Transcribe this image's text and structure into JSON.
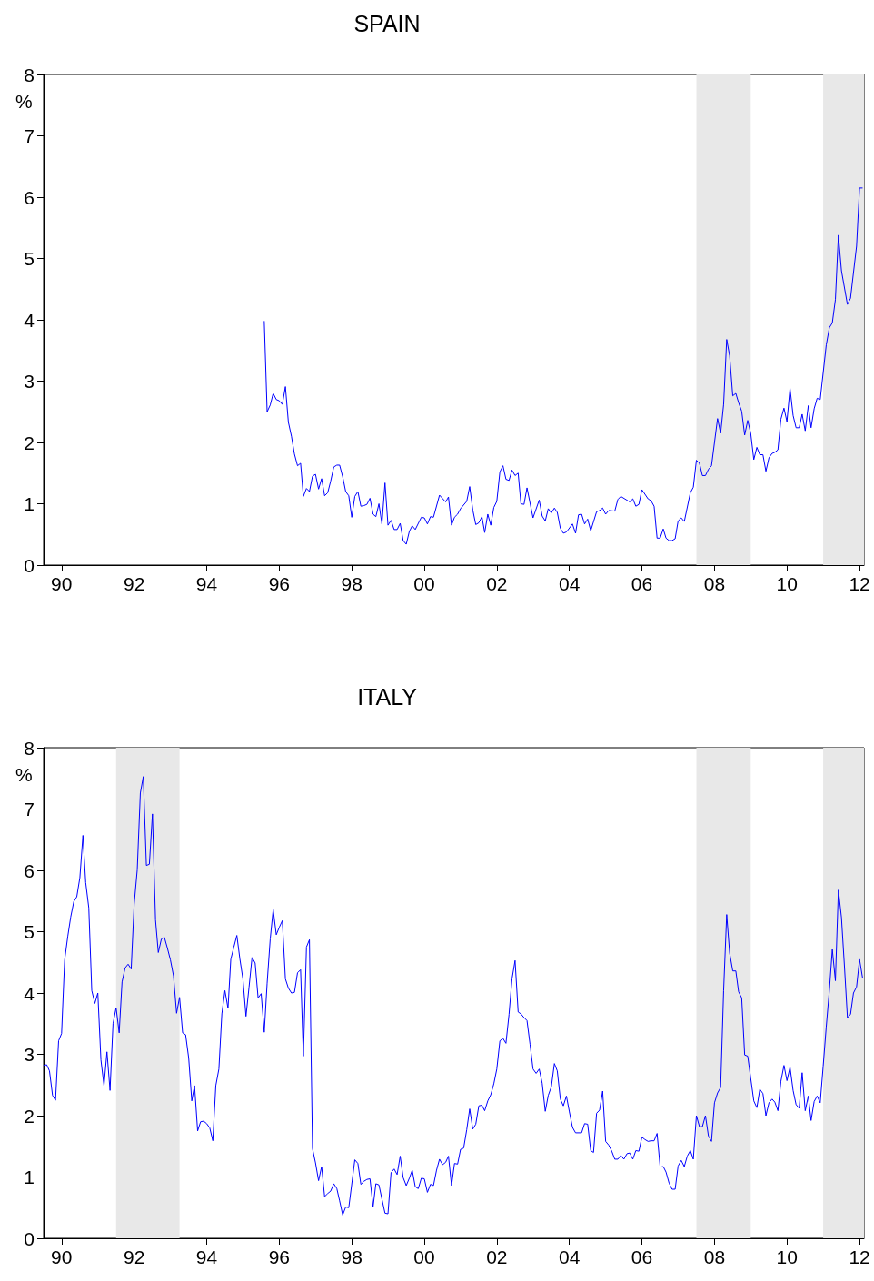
{
  "chart_data": [
    {
      "type": "line",
      "title": "SPAIN",
      "ylabel": "%",
      "color": "#0000ff",
      "xlim": [
        "1990-01-01",
        "2012-08-15"
      ],
      "ylim": [
        0,
        8
      ],
      "yticks": [
        0,
        1,
        2,
        3,
        4,
        5,
        6,
        7,
        8
      ],
      "xticks": [
        {
          "value": "1990-07-01",
          "label": "90"
        },
        {
          "value": "1992-07-01",
          "label": "92"
        },
        {
          "value": "1994-07-01",
          "label": "94"
        },
        {
          "value": "1996-07-01",
          "label": "96"
        },
        {
          "value": "1998-07-01",
          "label": "98"
        },
        {
          "value": "2000-07-01",
          "label": "00"
        },
        {
          "value": "2002-07-01",
          "label": "02"
        },
        {
          "value": "2004-07-01",
          "label": "04"
        },
        {
          "value": "2006-07-01",
          "label": "06"
        },
        {
          "value": "2008-07-01",
          "label": "08"
        },
        {
          "value": "2010-07-01",
          "label": "10"
        },
        {
          "value": "2012-07-01",
          "label": "12"
        }
      ],
      "bands": [
        {
          "axis": "x",
          "from": "2008-01-01",
          "to": "2009-07-01",
          "color": "#e8e8e8"
        },
        {
          "axis": "x",
          "from": "2011-07-01",
          "to": "2012-08-15",
          "color": "#e8e8e8"
        }
      ],
      "x": [
        "1996-02",
        "1996-03",
        "1996-04",
        "1996-05",
        "1996-06",
        "1996-07",
        "1996-08",
        "1996-09",
        "1996-10",
        "1996-11",
        "1996-12",
        "1997-01",
        "1997-02",
        "1997-03",
        "1997-04",
        "1997-05",
        "1997-06",
        "1997-07",
        "1997-08",
        "1997-09",
        "1997-10",
        "1997-11",
        "1997-12",
        "1998-01",
        "1998-02",
        "1998-03",
        "1998-04",
        "1998-05",
        "1998-06",
        "1998-07",
        "1998-08",
        "1998-09",
        "1998-10",
        "1998-11",
        "1998-12",
        "1999-01",
        "1999-02",
        "1999-03",
        "1999-04",
        "1999-05",
        "1999-06",
        "1999-07",
        "1999-08",
        "1999-09",
        "1999-10",
        "1999-11",
        "1999-12",
        "2000-01",
        "2000-02",
        "2000-03",
        "2000-04",
        "2000-06",
        "2000-07",
        "2000-08",
        "2000-09",
        "2000-10",
        "2000-12",
        "2001-02",
        "2001-03",
        "2001-04",
        "2001-05",
        "2001-06",
        "2001-07",
        "2001-09",
        "2001-10",
        "2001-11",
        "2001-12",
        "2002-01",
        "2002-02",
        "2002-03",
        "2002-04",
        "2002-05",
        "2002-06",
        "2002-07",
        "2002-08",
        "2002-09",
        "2002-10",
        "2002-11",
        "2002-12",
        "2003-01",
        "2003-02",
        "2003-03",
        "2003-04",
        "2003-05",
        "2003-07",
        "2003-09",
        "2003-10",
        "2003-11",
        "2003-12",
        "2004-01",
        "2004-02",
        "2004-03",
        "2004-04",
        "2004-05",
        "2004-06",
        "2004-08",
        "2004-09",
        "2004-10",
        "2004-11",
        "2004-12",
        "2005-01",
        "2005-02",
        "2005-04",
        "2005-05",
        "2005-06",
        "2005-07",
        "2005-08",
        "2005-10",
        "2005-11",
        "2005-12",
        "2006-03",
        "2006-04",
        "2006-05",
        "2006-06",
        "2006-07",
        "2006-09",
        "2006-10",
        "2006-11",
        "2006-12",
        "2007-01",
        "2007-02",
        "2007-03",
        "2007-04",
        "2007-05",
        "2007-06",
        "2007-07",
        "2007-08",
        "2007-09",
        "2007-11",
        "2007-12",
        "2008-01",
        "2008-02",
        "2008-03",
        "2008-04",
        "2008-05",
        "2008-06",
        "2008-08",
        "2008-09",
        "2008-10",
        "2008-11",
        "2008-12",
        "2009-01",
        "2009-02",
        "2009-03",
        "2009-04",
        "2009-05",
        "2009-06",
        "2009-07",
        "2009-08",
        "2009-09",
        "2009-10",
        "2009-11",
        "2009-12",
        "2010-01",
        "2010-02",
        "2010-03",
        "2010-04",
        "2010-05",
        "2010-06",
        "2010-07",
        "2010-08",
        "2010-09",
        "2010-10",
        "2010-11",
        "2010-12",
        "2011-01",
        "2011-02",
        "2011-03",
        "2011-04",
        "2011-05",
        "2011-06",
        "2011-08",
        "2011-09",
        "2011-10",
        "2011-11",
        "2011-12",
        "2012-01",
        "2012-03",
        "2012-04",
        "2012-06",
        "2012-07",
        "2012-08"
      ],
      "values": [
        3.98,
        2.5,
        2.61,
        2.8,
        2.7,
        2.68,
        2.62,
        2.91,
        2.33,
        2.1,
        1.81,
        1.62,
        1.66,
        1.12,
        1.25,
        1.2,
        1.45,
        1.48,
        1.24,
        1.41,
        1.13,
        1.18,
        1.37,
        1.6,
        1.63,
        1.63,
        1.44,
        1.2,
        1.13,
        0.78,
        1.12,
        1.2,
        0.96,
        0.97,
        0.99,
        1.09,
        0.83,
        0.79,
        1.0,
        0.67,
        1.34,
        0.65,
        0.73,
        0.58,
        0.58,
        0.68,
        0.4,
        0.34,
        0.55,
        0.64,
        0.58,
        0.78,
        0.77,
        0.67,
        0.79,
        0.78,
        1.14,
        1.03,
        1.11,
        0.65,
        0.78,
        0.83,
        0.92,
        1.04,
        1.28,
        0.9,
        0.66,
        0.69,
        0.79,
        0.53,
        0.83,
        0.65,
        0.94,
        1.04,
        1.52,
        1.62,
        1.4,
        1.38,
        1.55,
        1.46,
        1.5,
        1.0,
        0.99,
        1.26,
        0.77,
        1.06,
        0.8,
        0.72,
        0.92,
        0.85,
        0.93,
        0.86,
        0.6,
        0.52,
        0.54,
        0.67,
        0.52,
        0.82,
        0.83,
        0.67,
        0.75,
        0.56,
        0.87,
        0.89,
        0.93,
        0.83,
        0.89,
        0.88,
        1.07,
        1.12,
        1.03,
        1.08,
        0.96,
        0.99,
        1.23,
        1.08,
        1.05,
        0.96,
        0.44,
        0.44,
        0.59,
        0.44,
        0.4,
        0.4,
        0.43,
        0.72,
        0.77,
        0.71,
        1.18,
        1.27,
        1.71,
        1.66,
        1.46,
        1.46,
        1.56,
        1.62,
        2.39,
        2.15,
        2.62,
        3.68,
        3.41,
        2.76,
        2.8,
        2.65,
        2.51,
        2.12,
        2.36,
        2.15,
        1.72,
        1.92,
        1.8,
        1.8,
        1.53,
        1.75,
        1.82,
        1.84,
        1.88,
        2.38,
        2.56,
        2.34,
        2.88,
        2.44,
        2.24,
        2.24,
        2.46,
        2.19,
        2.6,
        2.24,
        2.55,
        2.72,
        2.7,
        3.59,
        3.87,
        3.95,
        4.33,
        5.38,
        4.8,
        4.25,
        4.35,
        5.2,
        6.15,
        6.15
      ]
    },
    {
      "type": "line",
      "title": "ITALY",
      "ylabel": "%",
      "color": "#0000ff",
      "xlim": [
        "1990-01-01",
        "2012-08-15"
      ],
      "ylim": [
        0,
        8
      ],
      "yticks": [
        0,
        1,
        2,
        3,
        4,
        5,
        6,
        7,
        8
      ],
      "xticks": [
        {
          "value": "1990-07-01",
          "label": "90"
        },
        {
          "value": "1992-07-01",
          "label": "92"
        },
        {
          "value": "1994-07-01",
          "label": "94"
        },
        {
          "value": "1996-07-01",
          "label": "96"
        },
        {
          "value": "1998-07-01",
          "label": "98"
        },
        {
          "value": "2000-07-01",
          "label": "00"
        },
        {
          "value": "2002-07-01",
          "label": "02"
        },
        {
          "value": "2004-07-01",
          "label": "04"
        },
        {
          "value": "2006-07-01",
          "label": "06"
        },
        {
          "value": "2008-07-01",
          "label": "08"
        },
        {
          "value": "2010-07-01",
          "label": "10"
        },
        {
          "value": "2012-07-01",
          "label": "12"
        }
      ],
      "bands": [
        {
          "axis": "x",
          "from": "1992-01-01",
          "to": "1993-10-01",
          "color": "#e8e8e8"
        },
        {
          "axis": "x",
          "from": "2008-01-01",
          "to": "2009-07-01",
          "color": "#e8e8e8"
        },
        {
          "axis": "x",
          "from": "2011-07-01",
          "to": "2012-08-15",
          "color": "#e8e8e8"
        }
      ],
      "x": [
        "1990-01",
        "1990-02",
        "1990-03",
        "1990-04",
        "1990-05",
        "1990-06",
        "1990-07",
        "1990-08",
        "1990-09",
        "1990-10",
        "1990-11",
        "1990-12",
        "1991-01",
        "1991-02",
        "1991-03",
        "1991-04",
        "1991-05",
        "1991-06",
        "1991-07",
        "1991-08",
        "1991-09",
        "1991-10",
        "1991-11",
        "1991-12",
        "1992-01",
        "1992-02",
        "1992-03",
        "1992-04",
        "1992-05",
        "1992-06",
        "1992-07",
        "1992-08",
        "1992-09",
        "1992-10",
        "1992-11",
        "1992-12",
        "1993-01",
        "1993-02",
        "1993-03",
        "1993-04",
        "1993-05",
        "1993-06",
        "1993-07",
        "1993-08",
        "1993-09",
        "1993-10",
        "1993-11",
        "1993-12",
        "1994-01",
        "1994-02",
        "1994-03",
        "1994-04",
        "1994-05",
        "1994-06",
        "1994-07",
        "1994-08",
        "1994-09",
        "1994-10",
        "1994-11",
        "1994-12",
        "1995-01",
        "1995-02",
        "1995-03",
        "1995-04",
        "1995-05",
        "1995-06",
        "1995-07",
        "1995-08",
        "1995-09",
        "1995-10",
        "1995-11",
        "1995-12",
        "1996-01",
        "1996-02",
        "1996-03",
        "1996-04",
        "1996-05",
        "1996-06",
        "1996-07",
        "1996-08",
        "1996-09",
        "1996-10",
        "1996-11",
        "1996-12",
        "1997-01",
        "1997-02",
        "1997-03",
        "1997-04",
        "1997-05",
        "1997-06",
        "1997-07",
        "1997-08",
        "1997-09",
        "1997-10",
        "1997-11",
        "1997-12",
        "1998-01",
        "1998-02",
        "1998-03",
        "1998-04",
        "1998-05",
        "1998-06",
        "1998-08",
        "1998-09",
        "1998-10",
        "1998-11",
        "1998-12",
        "1999-01",
        "1999-02",
        "1999-03",
        "1999-04",
        "1999-05",
        "1999-06",
        "1999-07",
        "1999-08",
        "1999-09",
        "1999-10",
        "1999-11",
        "1999-12",
        "2000-01",
        "2000-02",
        "2000-03",
        "2000-04",
        "2000-05",
        "2000-06",
        "2000-07",
        "2000-08",
        "2000-09",
        "2000-10",
        "2000-11",
        "2000-12",
        "2001-01",
        "2001-02",
        "2001-03",
        "2001-04",
        "2001-05",
        "2001-06",
        "2001-07",
        "2001-08",
        "2001-09",
        "2001-10",
        "2001-11",
        "2001-12",
        "2002-01",
        "2002-02",
        "2002-03",
        "2002-04",
        "2002-05",
        "2002-06",
        "2002-07",
        "2002-08",
        "2002-09",
        "2002-10",
        "2002-11",
        "2002-12",
        "2003-01",
        "2003-02",
        "2003-03",
        "2003-04",
        "2003-05",
        "2003-06",
        "2003-07",
        "2003-08",
        "2003-09",
        "2003-10",
        "2003-11",
        "2003-12",
        "2004-01",
        "2004-02",
        "2004-03",
        "2004-04",
        "2004-05",
        "2004-06",
        "2004-07",
        "2004-08",
        "2004-09",
        "2004-11",
        "2004-12",
        "2005-01",
        "2005-02",
        "2005-03",
        "2005-04",
        "2005-05",
        "2005-06",
        "2005-07",
        "2005-08",
        "2005-09",
        "2005-10",
        "2005-11",
        "2005-12",
        "2006-01",
        "2006-02",
        "2006-03",
        "2006-04",
        "2006-05",
        "2006-06",
        "2006-07",
        "2006-08",
        "2006-09",
        "2006-10",
        "2006-11",
        "2006-12",
        "2007-01",
        "2007-02",
        "2007-03",
        "2007-04",
        "2007-05",
        "2007-06",
        "2007-07",
        "2007-08",
        "2007-09",
        "2007-10",
        "2007-11",
        "2007-12",
        "2008-01",
        "2008-02",
        "2008-03",
        "2008-04",
        "2008-05",
        "2008-06",
        "2008-07",
        "2008-08",
        "2008-09",
        "2008-10",
        "2008-11",
        "2008-12",
        "2009-01",
        "2009-02",
        "2009-03",
        "2009-04",
        "2009-05",
        "2009-06",
        "2009-07",
        "2009-08",
        "2009-09",
        "2009-10",
        "2009-11",
        "2009-12",
        "2010-01",
        "2010-02",
        "2010-03",
        "2010-04",
        "2010-05",
        "2010-06",
        "2010-07",
        "2010-08",
        "2010-09",
        "2010-10",
        "2010-11",
        "2010-12",
        "2011-01",
        "2011-02",
        "2011-03",
        "2011-04",
        "2011-05",
        "2011-06",
        "2011-07",
        "2011-08",
        "2011-09",
        "2011-10",
        "2011-11",
        "2011-12",
        "2012-01",
        "2012-02",
        "2012-03",
        "2012-04",
        "2012-05",
        "2012-06",
        "2012-07",
        "2012-08"
      ],
      "values": [
        2.82,
        2.83,
        2.73,
        2.33,
        2.25,
        3.22,
        3.34,
        4.54,
        4.92,
        5.24,
        5.49,
        5.57,
        5.88,
        6.57,
        5.8,
        5.39,
        4.04,
        3.83,
        4.0,
        2.91,
        2.49,
        3.04,
        2.41,
        3.5,
        3.76,
        3.35,
        4.18,
        4.41,
        4.47,
        4.39,
        5.45,
        6.01,
        7.26,
        7.53,
        6.08,
        6.1,
        6.92,
        5.19,
        4.66,
        4.88,
        4.91,
        4.73,
        4.54,
        4.28,
        3.67,
        3.93,
        3.35,
        3.32,
        2.94,
        2.24,
        2.49,
        1.75,
        1.9,
        1.91,
        1.87,
        1.8,
        1.59,
        2.49,
        2.76,
        3.66,
        4.04,
        3.75,
        4.55,
        4.75,
        4.94,
        4.55,
        4.23,
        3.62,
        4.1,
        4.58,
        4.49,
        3.92,
        3.99,
        3.36,
        4.16,
        4.88,
        5.36,
        4.95,
        5.07,
        5.18,
        4.23,
        4.08,
        4.0,
        4.01,
        4.33,
        4.38,
        2.97,
        4.75,
        4.87,
        1.46,
        1.23,
        0.94,
        1.17,
        0.68,
        0.73,
        0.77,
        0.89,
        0.81,
        0.61,
        0.38,
        0.51,
        0.5,
        1.28,
        1.22,
        0.88,
        0.93,
        0.96,
        0.97,
        0.51,
        0.89,
        0.87,
        0.64,
        0.41,
        0.4,
        1.07,
        1.13,
        1.04,
        1.34,
        0.99,
        0.86,
        0.98,
        1.11,
        0.84,
        0.81,
        0.98,
        0.97,
        0.75,
        0.88,
        0.86,
        1.11,
        1.29,
        1.2,
        1.24,
        1.34,
        0.86,
        1.22,
        1.21,
        1.45,
        1.47,
        1.77,
        2.11,
        1.78,
        1.86,
        2.16,
        2.17,
        2.08,
        2.24,
        2.34,
        2.52,
        2.76,
        3.22,
        3.26,
        3.18,
        3.65,
        4.23,
        4.53,
        3.69,
        3.66,
        3.6,
        3.55,
        3.16,
        2.76,
        2.69,
        2.76,
        2.53,
        2.07,
        2.33,
        2.47,
        2.85,
        2.73,
        2.27,
        2.16,
        2.32,
        2.06,
        1.81,
        1.72,
        1.72,
        1.87,
        1.86,
        1.43,
        1.4,
        2.04,
        2.09,
        2.4,
        1.58,
        1.52,
        1.42,
        1.29,
        1.29,
        1.35,
        1.29,
        1.38,
        1.39,
        1.29,
        1.43,
        1.42,
        1.65,
        1.61,
        1.58,
        1.59,
        1.59,
        1.71,
        1.16,
        1.17,
        1.08,
        0.9,
        0.8,
        0.8,
        1.18,
        1.27,
        1.17,
        1.34,
        1.43,
        1.29,
        2.0,
        1.82,
        1.82,
        2.0,
        1.67,
        1.58,
        2.21,
        2.37,
        2.46,
        4.04,
        5.28,
        4.65,
        4.36,
        4.36,
        4.02,
        3.92,
        2.99,
        2.97,
        2.61,
        2.24,
        2.13,
        2.43,
        2.36,
        2.0,
        2.21,
        2.27,
        2.22,
        2.08,
        2.56,
        2.82,
        2.57,
        2.79,
        2.41,
        2.18,
        2.12,
        2.7,
        2.08,
        2.32,
        1.92,
        2.23,
        2.32,
        2.21,
        2.81,
        3.45,
        4.04,
        4.71,
        4.2,
        5.68,
        5.23,
        4.41,
        3.6,
        3.65,
        4.0,
        4.1,
        4.55,
        4.24
      ]
    }
  ]
}
